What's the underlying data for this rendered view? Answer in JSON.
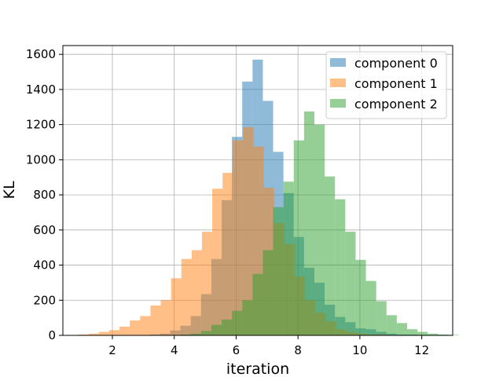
{
  "chart_data": {
    "type": "histogram",
    "title": "",
    "xlabel": "iteration",
    "ylabel": "KL",
    "xlim": [
      0.4,
      13.0
    ],
    "ylim": [
      0,
      1650
    ],
    "xticks": [
      2,
      4,
      6,
      8,
      10,
      12
    ],
    "yticks": [
      0,
      200,
      400,
      600,
      800,
      1000,
      1200,
      1400,
      1600
    ],
    "grid": true,
    "legend_placement": "top-right",
    "series": [
      {
        "name": "component 0",
        "color": "#1f77b4",
        "alpha": 0.5,
        "bin_start": 3.2,
        "bin_width": 0.333,
        "values": [
          5,
          10,
          28,
          55,
          110,
          235,
          435,
          770,
          1130,
          1445,
          1570,
          1335,
          1045,
          810,
          560,
          385,
          300,
          175,
          105,
          75,
          40,
          35,
          20,
          10,
          5,
          5,
          3
        ]
      },
      {
        "name": "component 1",
        "color": "#ff7f0e",
        "alpha": 0.5,
        "bin_start": 0.9,
        "bin_width": 0.333,
        "values": [
          5,
          10,
          20,
          30,
          50,
          85,
          110,
          170,
          200,
          325,
          435,
          485,
          590,
          835,
          925,
          1110,
          1185,
          1075,
          840,
          640,
          520,
          335,
          200,
          130,
          80,
          35,
          20,
          10,
          5,
          5
        ]
      },
      {
        "name": "component 2",
        "color": "#2ca02c",
        "alpha": 0.5,
        "bin_start": 4.2,
        "bin_width": 0.333,
        "values": [
          5,
          10,
          25,
          60,
          90,
          140,
          200,
          350,
          485,
          730,
          875,
          1110,
          1275,
          1200,
          905,
          775,
          590,
          430,
          310,
          195,
          115,
          70,
          35,
          20,
          10,
          5,
          3
        ]
      }
    ]
  }
}
